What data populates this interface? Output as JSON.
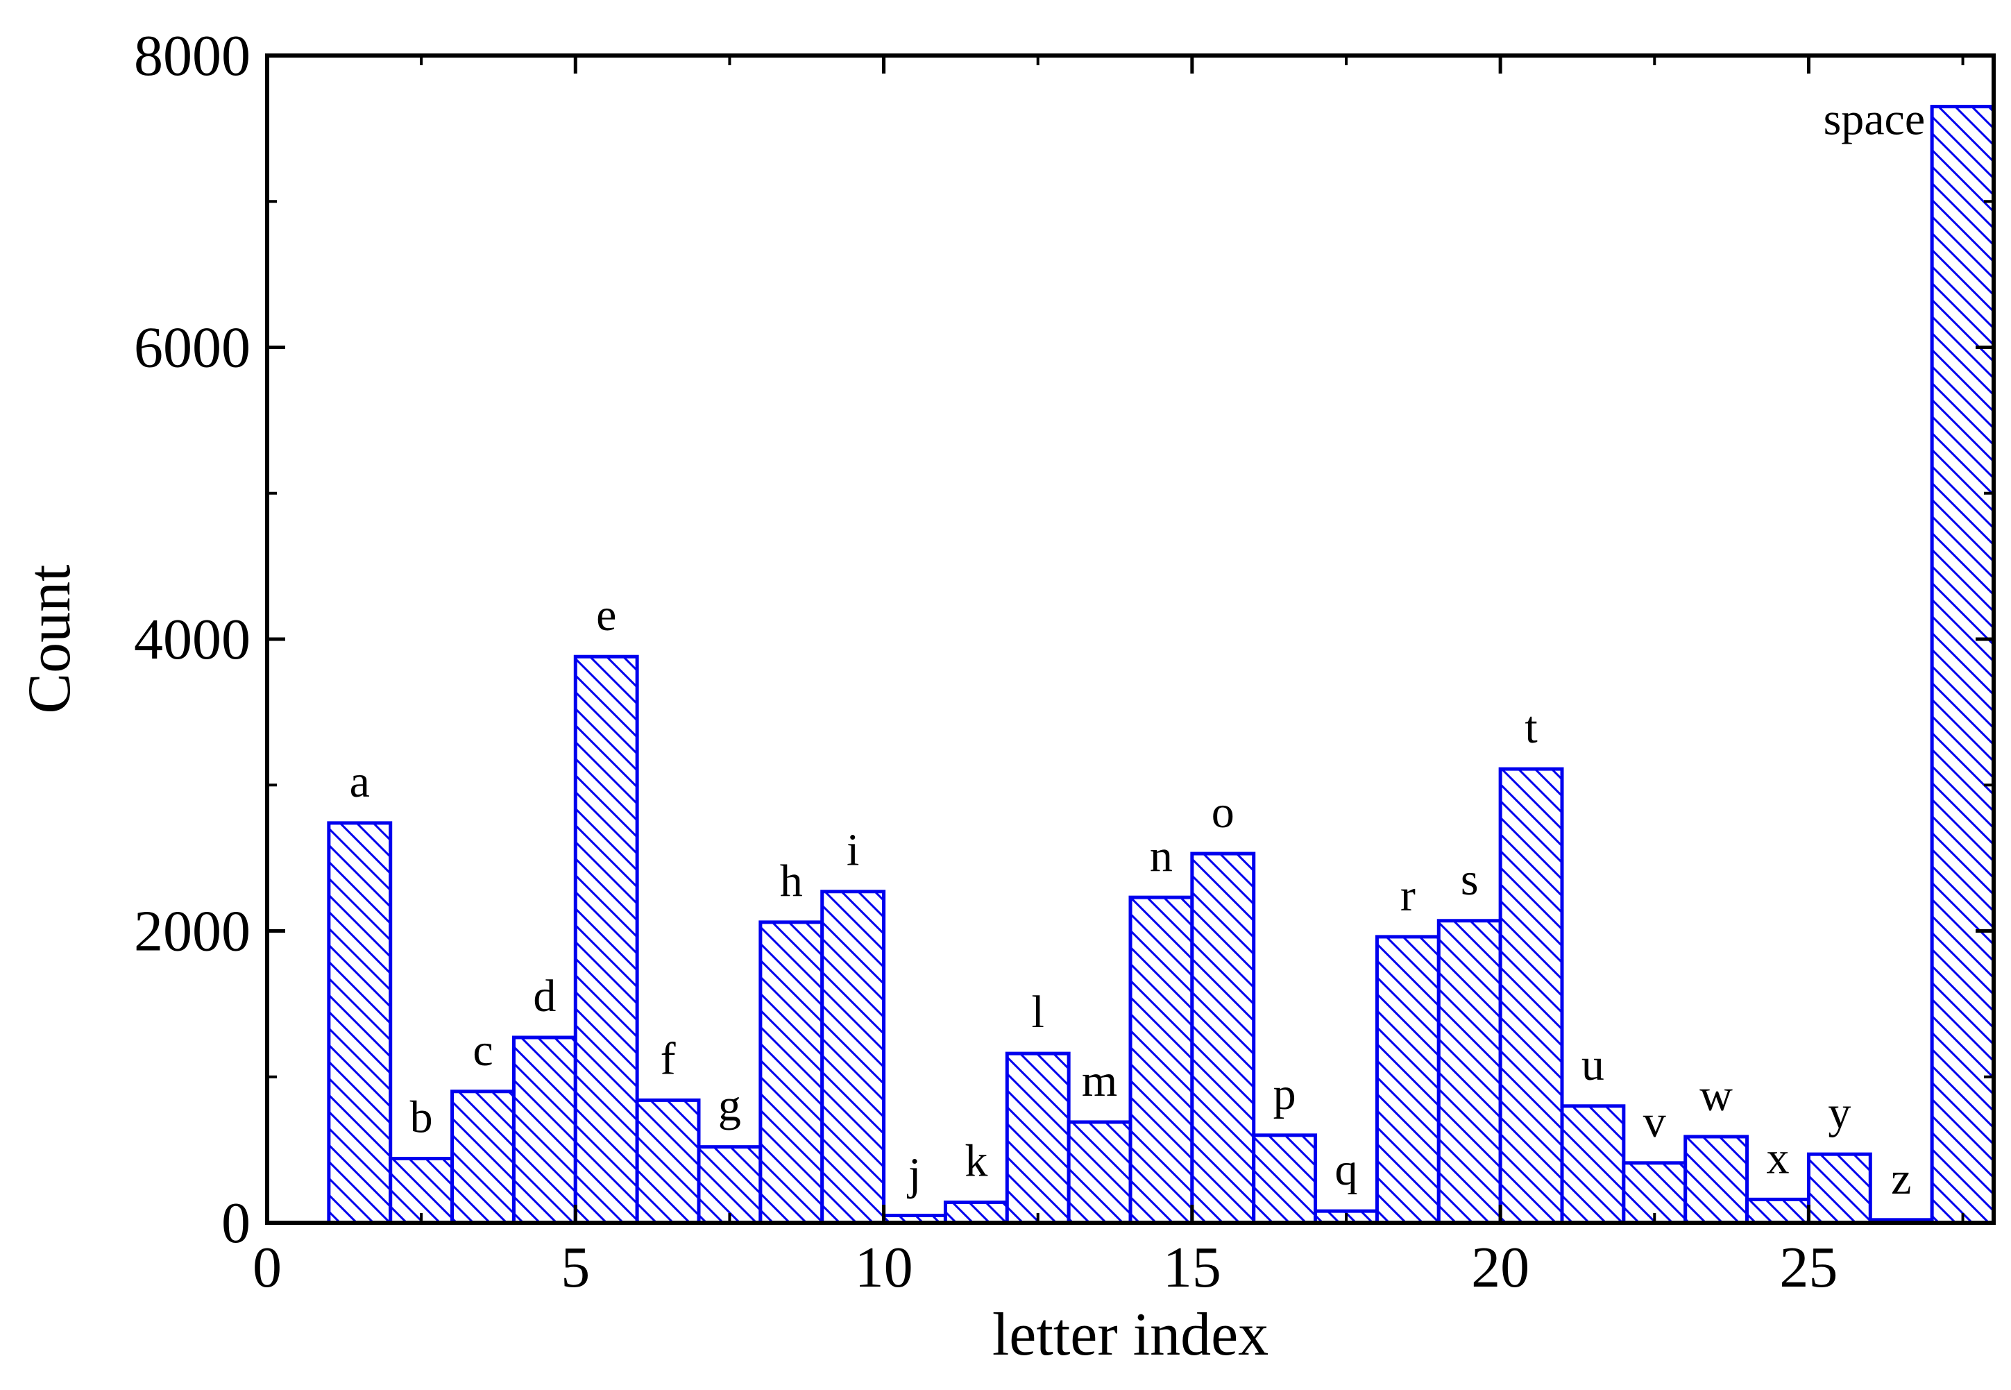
{
  "chart_data": {
    "type": "bar",
    "xlabel": "letter index",
    "ylabel": "Count",
    "xlim": [
      0,
      28
    ],
    "ylim": [
      0,
      8000
    ],
    "xticks": [
      0,
      5,
      10,
      15,
      20,
      25
    ],
    "yticks": [
      0,
      2000,
      4000,
      6000,
      8000
    ],
    "grid": false,
    "bar_color": "#0000ee",
    "bar_fill": "diagonal hatch",
    "bars": [
      {
        "label": "a",
        "x_start": 1,
        "x_end": 2,
        "value": 2740
      },
      {
        "label": "b",
        "x_start": 2,
        "x_end": 3,
        "value": 440
      },
      {
        "label": "c",
        "x_start": 3,
        "x_end": 4,
        "value": 900
      },
      {
        "label": "d",
        "x_start": 4,
        "x_end": 5,
        "value": 1270
      },
      {
        "label": "e",
        "x_start": 5,
        "x_end": 6,
        "value": 3880
      },
      {
        "label": "f",
        "x_start": 6,
        "x_end": 7,
        "value": 840
      },
      {
        "label": "g",
        "x_start": 7,
        "x_end": 8,
        "value": 520
      },
      {
        "label": "h",
        "x_start": 8,
        "x_end": 9,
        "value": 2060
      },
      {
        "label": "i",
        "x_start": 9,
        "x_end": 10,
        "value": 2270
      },
      {
        "label": "j",
        "x_start": 10,
        "x_end": 11,
        "value": 50
      },
      {
        "label": "k",
        "x_start": 11,
        "x_end": 12,
        "value": 140
      },
      {
        "label": "l",
        "x_start": 12,
        "x_end": 13,
        "value": 1160
      },
      {
        "label": "m",
        "x_start": 13,
        "x_end": 14,
        "value": 690
      },
      {
        "label": "n",
        "x_start": 14,
        "x_end": 15,
        "value": 2230
      },
      {
        "label": "o",
        "x_start": 15,
        "x_end": 16,
        "value": 2530
      },
      {
        "label": "p",
        "x_start": 16,
        "x_end": 17,
        "value": 600
      },
      {
        "label": "q",
        "x_start": 17,
        "x_end": 18,
        "value": 80
      },
      {
        "label": "r",
        "x_start": 18,
        "x_end": 19,
        "value": 1960
      },
      {
        "label": "s",
        "x_start": 19,
        "x_end": 20,
        "value": 2070
      },
      {
        "label": "t",
        "x_start": 20,
        "x_end": 21,
        "value": 3110
      },
      {
        "label": "u",
        "x_start": 21,
        "x_end": 22,
        "value": 800
      },
      {
        "label": "v",
        "x_start": 22,
        "x_end": 23,
        "value": 410
      },
      {
        "label": "w",
        "x_start": 23,
        "x_end": 24,
        "value": 590
      },
      {
        "label": "x",
        "x_start": 24,
        "x_end": 25,
        "value": 160
      },
      {
        "label": "y",
        "x_start": 25,
        "x_end": 26,
        "value": 470
      },
      {
        "label": "z",
        "x_start": 26,
        "x_end": 27,
        "value": 20
      },
      {
        "label": "space",
        "x_start": 27,
        "x_end": 28,
        "value": 7650
      }
    ]
  }
}
